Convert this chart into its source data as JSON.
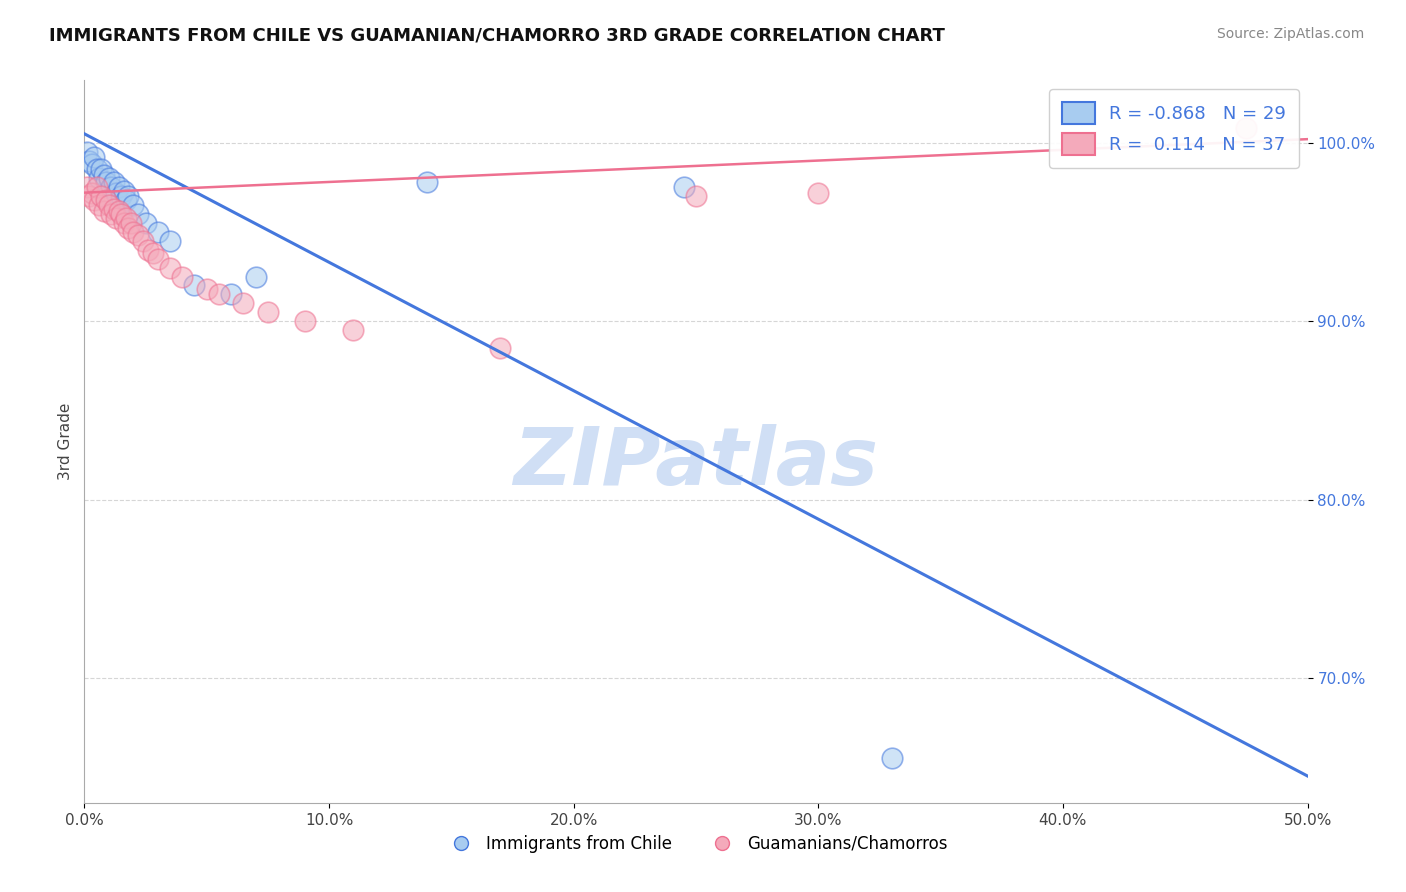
{
  "title": "IMMIGRANTS FROM CHILE VS GUAMANIAN/CHAMORRO 3RD GRADE CORRELATION CHART",
  "source": "Source: ZipAtlas.com",
  "ylabel": "3rd Grade",
  "xlim": [
    0.0,
    50.0
  ],
  "ylim": [
    63.0,
    103.5
  ],
  "xticks": [
    0.0,
    10.0,
    20.0,
    30.0,
    40.0,
    50.0
  ],
  "yticks": [
    70.0,
    80.0,
    90.0,
    100.0
  ],
  "ytick_labels": [
    "70.0%",
    "80.0%",
    "90.0%",
    "100.0%"
  ],
  "xtick_labels": [
    "0.0%",
    "10.0%",
    "20.0%",
    "30.0%",
    "40.0%",
    "50.0%"
  ],
  "blue_R": -0.868,
  "blue_N": 29,
  "pink_R": 0.114,
  "pink_N": 37,
  "blue_color": "#A8CCF0",
  "pink_color": "#F4AABB",
  "blue_line_color": "#4477DD",
  "pink_line_color": "#EE7090",
  "watermark": "ZIPatlas",
  "watermark_color": "#D0DFF5",
  "legend_label_blue": "Immigrants from Chile",
  "legend_label_pink": "Guamanians/Chamorros",
  "blue_line_x0": 0.0,
  "blue_line_y0": 100.5,
  "blue_line_x1": 50.0,
  "blue_line_y1": 64.5,
  "pink_line_x0": 0.0,
  "pink_line_y0": 97.2,
  "pink_line_x1": 50.0,
  "pink_line_y1": 100.2,
  "blue_scatter_x": [
    0.1,
    0.2,
    0.3,
    0.4,
    0.5,
    0.6,
    0.7,
    0.8,
    0.9,
    1.0,
    1.1,
    1.2,
    1.3,
    1.4,
    1.5,
    1.6,
    1.7,
    1.8,
    2.0,
    2.2,
    2.5,
    3.0,
    3.5,
    4.5,
    6.0,
    7.0,
    14.0,
    24.5,
    33.0
  ],
  "blue_scatter_y": [
    99.5,
    99.0,
    98.8,
    99.2,
    98.5,
    98.0,
    98.5,
    98.2,
    97.8,
    98.0,
    97.5,
    97.8,
    97.2,
    97.5,
    97.0,
    97.3,
    96.8,
    97.0,
    96.5,
    96.0,
    95.5,
    95.0,
    94.5,
    92.0,
    91.5,
    92.5,
    97.8,
    97.5,
    65.5
  ],
  "pink_scatter_x": [
    0.1,
    0.2,
    0.3,
    0.4,
    0.5,
    0.6,
    0.7,
    0.8,
    0.9,
    1.0,
    1.1,
    1.2,
    1.3,
    1.4,
    1.5,
    1.6,
    1.7,
    1.8,
    1.9,
    2.0,
    2.2,
    2.4,
    2.6,
    2.8,
    3.0,
    3.5,
    4.0,
    5.0,
    5.5,
    6.5,
    7.5,
    9.0,
    11.0,
    17.0,
    25.0,
    30.0,
    47.5
  ],
  "pink_scatter_y": [
    97.5,
    97.0,
    97.2,
    96.8,
    97.5,
    96.5,
    97.0,
    96.2,
    96.8,
    96.5,
    96.0,
    96.3,
    95.8,
    96.2,
    96.0,
    95.5,
    95.8,
    95.2,
    95.5,
    95.0,
    94.8,
    94.5,
    94.0,
    93.8,
    93.5,
    93.0,
    92.5,
    91.8,
    91.5,
    91.0,
    90.5,
    90.0,
    89.5,
    88.5,
    97.0,
    97.2,
    100.8
  ]
}
